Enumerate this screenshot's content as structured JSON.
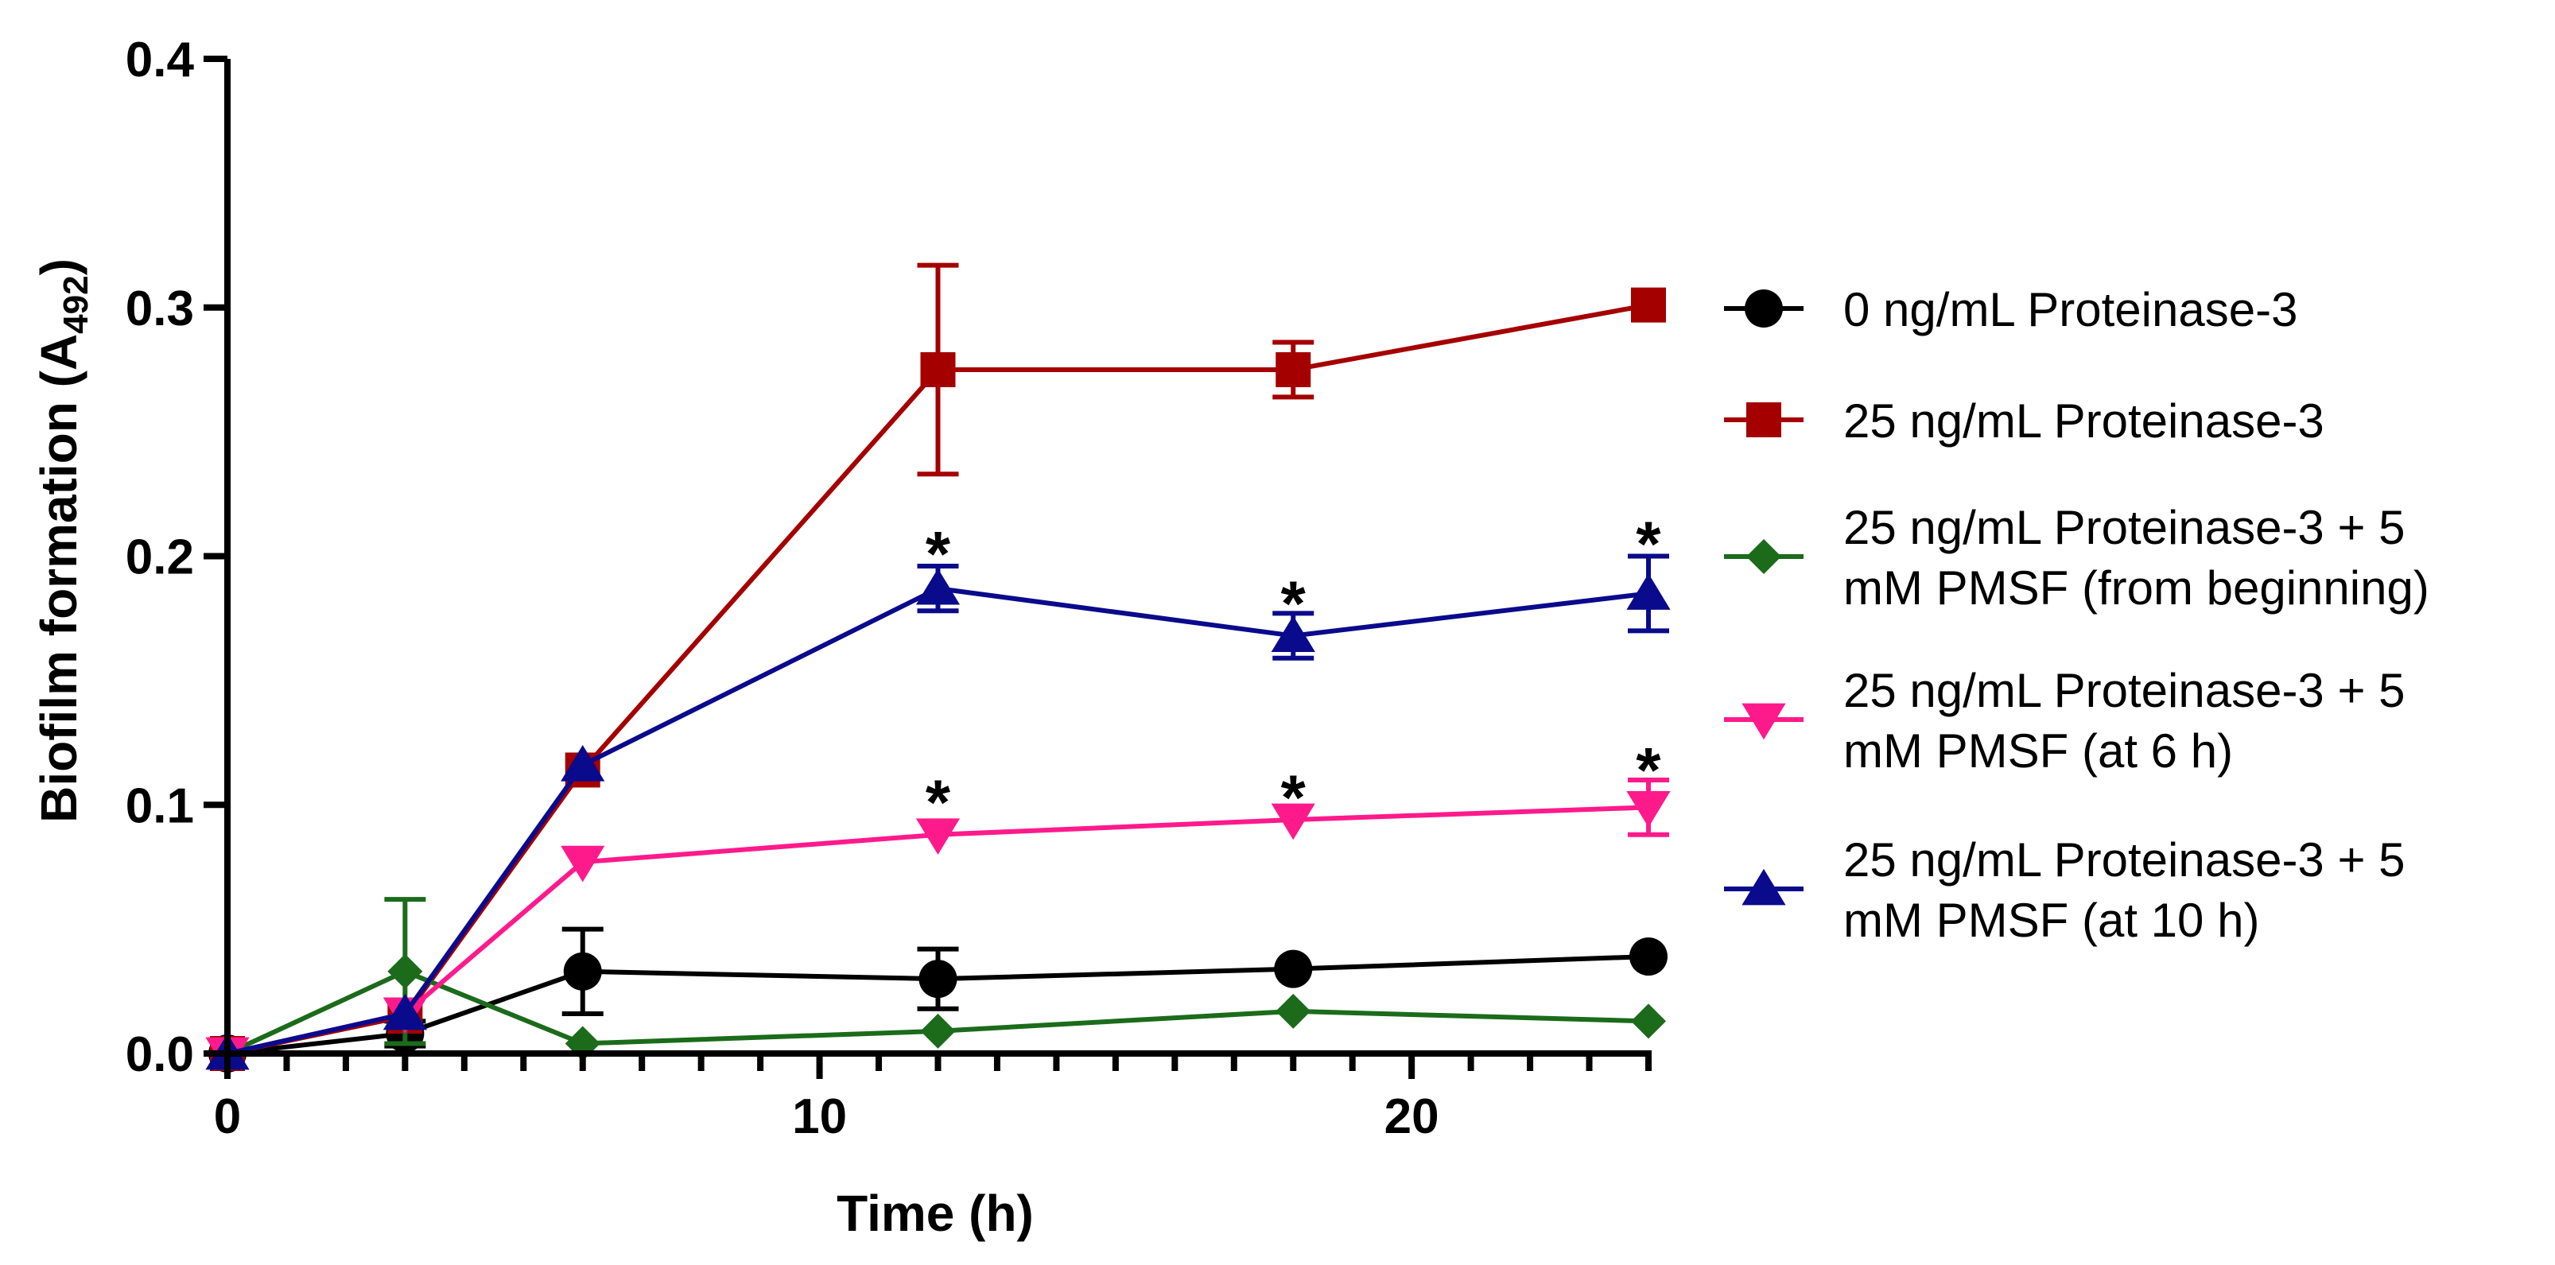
{
  "chart_data": {
    "type": "line",
    "title": "",
    "xlabel": "Time (h)",
    "ylabel_main": "Biofilm formation (A",
    "ylabel_sub": "492",
    "ylabel_close": ")",
    "xlim": [
      0,
      24
    ],
    "ylim": [
      0,
      0.4
    ],
    "x_major_ticks": [
      0,
      10,
      20
    ],
    "x_tick_labels": [
      "0",
      "10",
      "20"
    ],
    "y_ticks": [
      0.0,
      0.1,
      0.2,
      0.3,
      0.4
    ],
    "y_tick_labels": [
      "0.0",
      "0.1",
      "0.2",
      "0.3",
      "0.4"
    ],
    "legend_position": "right",
    "series": [
      {
        "name": "0 ng/mL Proteinase-3",
        "legend_lines": [
          "0 ng/mL Proteinase-3"
        ],
        "color": "#000000",
        "marker": "circle",
        "x": [
          0,
          3,
          6,
          12,
          18,
          24
        ],
        "y": [
          0.0,
          0.008,
          0.033,
          0.03,
          0.034,
          0.039
        ],
        "err": [
          0,
          0.005,
          0.017,
          0.012,
          0,
          0
        ]
      },
      {
        "name": "25 ng/mL Proteinase-3",
        "legend_lines": [
          "25 ng/mL Proteinase-3"
        ],
        "color": "#a50000",
        "marker": "square",
        "x": [
          0,
          3,
          6,
          12,
          18,
          24
        ],
        "y": [
          0.0,
          0.015,
          0.114,
          0.275,
          0.275,
          0.301
        ],
        "err": [
          0,
          0,
          0,
          0.042,
          0.011,
          0
        ]
      },
      {
        "name": "25 ng/mL Proteinase-3 + 5 mM PMSF (from beginning)",
        "legend_lines": [
          "25 ng/mL Proteinase-3 + 5",
          "mM PMSF (from beginning)"
        ],
        "color": "#1b6b1b",
        "marker": "diamond",
        "x": [
          0,
          3,
          6,
          12,
          18,
          24
        ],
        "y": [
          0.0,
          0.033,
          0.004,
          0.009,
          0.017,
          0.013
        ],
        "err": [
          0,
          0.029,
          0,
          0,
          0,
          0
        ]
      },
      {
        "name": "25 ng/mL Proteinase-3 + 5 mM PMSF (at 6 h)",
        "legend_lines": [
          "25 ng/mL Proteinase-3 + 5",
          "mM PMSF (at 6 h)"
        ],
        "color": "#ff1a8c",
        "marker": "triangle-down",
        "x": [
          0,
          3,
          6,
          12,
          18,
          24
        ],
        "y": [
          0.0,
          0.016,
          0.077,
          0.088,
          0.094,
          0.099
        ],
        "err": [
          0,
          0,
          0,
          0,
          0,
          0.011
        ]
      },
      {
        "name": "25 ng/mL Proteinase-3 + 5 mM PMSF (at 10 h)",
        "legend_lines": [
          "25 ng/mL Proteinase-3 + 5",
          "mM PMSF (at 10 h)"
        ],
        "color": "#0a0a8c",
        "marker": "triangle-up",
        "x": [
          0,
          3,
          6,
          12,
          18,
          24
        ],
        "y": [
          0.0,
          0.016,
          0.116,
          0.187,
          0.168,
          0.185
        ],
        "err": [
          0,
          0,
          0,
          0.009,
          0.009,
          0.015
        ]
      }
    ],
    "annotations": [
      {
        "text": "*",
        "x": 12,
        "y": 0.205
      },
      {
        "text": "*",
        "x": 18,
        "y": 0.185
      },
      {
        "text": "*",
        "x": 24,
        "y": 0.209
      },
      {
        "text": "*",
        "x": 12,
        "y": 0.105
      },
      {
        "text": "*",
        "x": 18,
        "y": 0.107
      },
      {
        "text": "*",
        "x": 24,
        "y": 0.118
      }
    ]
  }
}
